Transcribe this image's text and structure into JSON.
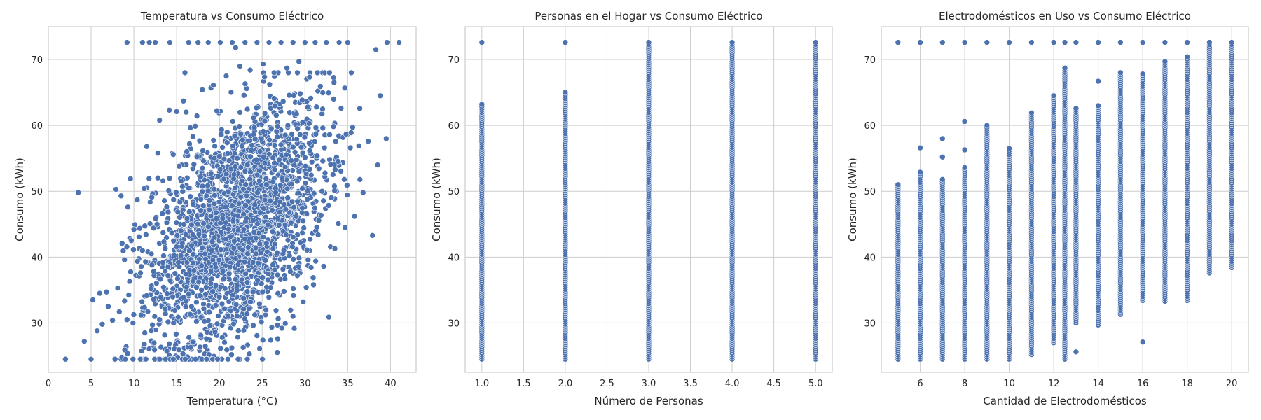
{
  "colors": {
    "marker": "#4c72b0",
    "marker_edge": "#ffffff",
    "grid": "#cccccc",
    "text": "#262626"
  },
  "chart_data": [
    {
      "type": "scatter",
      "title": "Temperatura vs Consumo Eléctrico",
      "xlabel": "Temperatura (°C)",
      "ylabel": "Consumo (kWh)",
      "xlim": [
        0,
        43
      ],
      "ylim": [
        22.5,
        75
      ],
      "xticks": [
        0,
        5,
        10,
        15,
        20,
        25,
        30,
        35,
        40
      ],
      "yticks": [
        30,
        40,
        50,
        60,
        70
      ],
      "grid": true,
      "points": [
        [
          2.0,
          24.5
        ],
        [
          3.5,
          49.8
        ],
        [
          4.2,
          27.2
        ],
        [
          5.0,
          24.5
        ],
        [
          5.2,
          33.5
        ],
        [
          5.7,
          28.8
        ],
        [
          6.0,
          34.5
        ],
        [
          6.3,
          29.8
        ],
        [
          6.8,
          34.7
        ],
        [
          7.0,
          32.5
        ],
        [
          7.5,
          30.4
        ],
        [
          7.8,
          24.5
        ],
        [
          7.9,
          50.3
        ],
        [
          8.1,
          35.3
        ],
        [
          8.3,
          31.7
        ],
        [
          8.5,
          49.3
        ],
        [
          8.6,
          24.8
        ],
        [
          8.9,
          39.6
        ],
        [
          9.0,
          24.5
        ],
        [
          9.2,
          72.6
        ],
        [
          9.3,
          47.6
        ],
        [
          9.6,
          51.9
        ],
        [
          10.4,
          48.7
        ],
        [
          10.6,
          43.1
        ],
        [
          11.0,
          72.6
        ],
        [
          11.2,
          50.4
        ],
        [
          11.4,
          24.5
        ],
        [
          11.5,
          56.8
        ],
        [
          11.8,
          72.6
        ],
        [
          12.1,
          49.1
        ],
        [
          12.5,
          72.6
        ],
        [
          12.8,
          55.8
        ],
        [
          13.0,
          60.8
        ],
        [
          13.4,
          39.2
        ],
        [
          14.2,
          72.6
        ],
        [
          14.6,
          24.5
        ],
        [
          15.0,
          62.1
        ],
        [
          15.8,
          63.7
        ],
        [
          16.4,
          72.6
        ],
        [
          16.9,
          58.3
        ],
        [
          17.5,
          72.6
        ],
        [
          18.0,
          65.4
        ],
        [
          18.7,
          72.6
        ],
        [
          19.3,
          66.1
        ],
        [
          20.1,
          72.6
        ],
        [
          20.8,
          67.5
        ],
        [
          21.5,
          72.6
        ],
        [
          21.9,
          71.8
        ],
        [
          22.4,
          69.0
        ],
        [
          23.0,
          72.6
        ],
        [
          23.6,
          68.4
        ],
        [
          24.4,
          72.6
        ],
        [
          25.1,
          69.3
        ],
        [
          25.8,
          72.6
        ],
        [
          26.4,
          64.1
        ],
        [
          27.2,
          72.6
        ],
        [
          27.9,
          68.7
        ],
        [
          28.6,
          72.6
        ],
        [
          29.3,
          69.7
        ],
        [
          30.0,
          72.6
        ],
        [
          30.5,
          60.3
        ],
        [
          31.2,
          72.6
        ],
        [
          31.8,
          65.9
        ],
        [
          32.5,
          72.6
        ],
        [
          33.0,
          54.1
        ],
        [
          33.4,
          66.5
        ],
        [
          34.0,
          72.6
        ],
        [
          34.6,
          51.8
        ],
        [
          35.0,
          72.6
        ],
        [
          35.4,
          58.9
        ],
        [
          35.8,
          46.2
        ],
        [
          36.3,
          56.9
        ],
        [
          36.8,
          49.8
        ],
        [
          37.4,
          57.6
        ],
        [
          37.9,
          43.3
        ],
        [
          38.3,
          71.5
        ],
        [
          38.5,
          54.0
        ],
        [
          38.8,
          64.5
        ],
        [
          39.5,
          58.0
        ],
        [
          39.6,
          72.6
        ],
        [
          41.0,
          72.6
        ],
        [
          16.0,
          24.5
        ],
        [
          17.2,
          24.5
        ],
        [
          18.5,
          24.5
        ],
        [
          19.8,
          24.5
        ],
        [
          21.0,
          24.5
        ],
        [
          22.2,
          24.5
        ],
        [
          23.5,
          25.3
        ],
        [
          24.7,
          26.1
        ],
        [
          26.0,
          27.4
        ],
        [
          27.3,
          29.2
        ],
        [
          28.6,
          31.0
        ],
        [
          29.8,
          33.2
        ],
        [
          31.0,
          35.8
        ],
        [
          32.2,
          38.6
        ],
        [
          33.5,
          41.3
        ],
        [
          34.7,
          44.5
        ],
        [
          14.0,
          38.5
        ],
        [
          15.5,
          44.0
        ],
        [
          17.8,
          52.2
        ],
        [
          20.0,
          55.3
        ],
        [
          22.5,
          58.7
        ],
        [
          24.0,
          61.2
        ],
        [
          26.5,
          63.0
        ],
        [
          28.0,
          60.0
        ],
        [
          30.5,
          57.3
        ],
        [
          32.0,
          50.0
        ],
        [
          13.0,
          30.5
        ],
        [
          12.0,
          35.2
        ],
        [
          11.0,
          41.0
        ],
        [
          10.0,
          44.2
        ],
        [
          9.5,
          36.3
        ]
      ],
      "n_cloud_points": 2400
    },
    {
      "type": "scatter",
      "title": "Personas en el Hogar vs Consumo Eléctrico",
      "xlabel": "Número de Personas",
      "ylabel": "Consumo (kWh)",
      "xlim": [
        0.8,
        5.2
      ],
      "ylim": [
        22.5,
        75
      ],
      "xticks": [
        1.0,
        1.5,
        2.0,
        2.5,
        3.0,
        3.5,
        4.0,
        4.5,
        5.0
      ],
      "yticks": [
        30,
        40,
        50,
        60,
        70
      ],
      "grid": true,
      "columns": [
        {
          "x": 1,
          "min": 24.5,
          "max": 63.2,
          "outliers": [
            72.6
          ]
        },
        {
          "x": 2,
          "min": 24.5,
          "max": 65.0,
          "outliers": [
            72.6
          ]
        },
        {
          "x": 3,
          "min": 24.5,
          "max": 72.6,
          "outliers": []
        },
        {
          "x": 4,
          "min": 24.5,
          "max": 72.6,
          "outliers": []
        },
        {
          "x": 5,
          "min": 24.5,
          "max": 72.6,
          "outliers": []
        }
      ]
    },
    {
      "type": "scatter",
      "title": "Electrodomésticos en Uso vs Consumo Eléctrico",
      "xlabel": "Cantidad de Electrodomésticos",
      "ylabel": "Consumo (kWh)",
      "xlim": [
        4.25,
        20.75
      ],
      "ylim": [
        22.5,
        75
      ],
      "xticks": [
        6,
        8,
        10,
        12,
        14,
        16,
        18,
        20
      ],
      "yticks": [
        30,
        40,
        50,
        60,
        70
      ],
      "grid": true,
      "columns": [
        {
          "x": 5,
          "min": 24.5,
          "max": 51.0,
          "outliers": [
            72.6
          ]
        },
        {
          "x": 6,
          "min": 24.5,
          "max": 52.9,
          "outliers": [
            56.6,
            72.6
          ]
        },
        {
          "x": 7,
          "min": 24.5,
          "max": 51.8,
          "outliers": [
            55.2,
            58.0,
            72.6
          ]
        },
        {
          "x": 8,
          "min": 24.5,
          "max": 53.6,
          "outliers": [
            56.3,
            60.6,
            72.6
          ]
        },
        {
          "x": 9,
          "min": 24.5,
          "max": 60.0,
          "outliers": [
            72.6
          ]
        },
        {
          "x": 10,
          "min": 24.5,
          "max": 56.5,
          "outliers": [
            72.6
          ]
        },
        {
          "x": 11,
          "min": 25.2,
          "max": 61.9,
          "outliers": [
            72.6
          ]
        },
        {
          "x": 12,
          "min": 27.0,
          "max": 64.5,
          "outliers": [
            72.6
          ]
        },
        {
          "x": 12.5,
          "min": 24.5,
          "max": 68.7,
          "outliers": [
            72.6
          ]
        },
        {
          "x": 13,
          "min": 30.0,
          "max": 62.6,
          "outliers": [
            25.6,
            72.6
          ]
        },
        {
          "x": 14,
          "min": 29.7,
          "max": 63.0,
          "outliers": [
            66.7,
            72.6
          ]
        },
        {
          "x": 15,
          "min": 31.3,
          "max": 68.0,
          "outliers": [
            72.6
          ]
        },
        {
          "x": 16,
          "min": 33.4,
          "max": 67.8,
          "outliers": [
            27.1,
            72.6
          ]
        },
        {
          "x": 17,
          "min": 33.3,
          "max": 69.7,
          "outliers": [
            72.6
          ]
        },
        {
          "x": 18,
          "min": 33.4,
          "max": 70.4,
          "outliers": [
            72.6
          ]
        },
        {
          "x": 19,
          "min": 37.6,
          "max": 72.6,
          "outliers": []
        },
        {
          "x": 20,
          "min": 38.4,
          "max": 72.6,
          "outliers": []
        }
      ]
    }
  ]
}
